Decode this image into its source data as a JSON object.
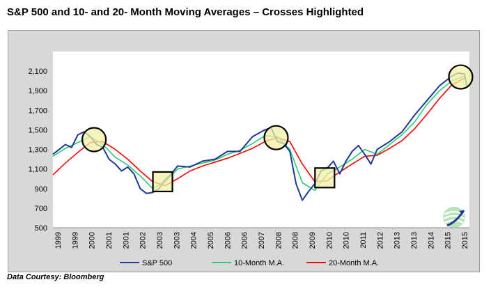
{
  "title": "S&P 500 and 10- and 20- Month Moving Averages – Crosses Highlighted",
  "credit": "Data Courtesy: Bloomberg",
  "colors": {
    "sp500": "#1f3a93",
    "ma10": "#2ecc71",
    "ma20": "#ff0000",
    "marker_fill": "#f2f0a6",
    "panel": "#d8d8d8"
  },
  "chart_data": {
    "type": "line",
    "title": "S&P 500 and 10- and 20- Month Moving Averages – Crosses Highlighted",
    "xlabel": "",
    "ylabel": "",
    "xlim": [
      1999.0,
      2015.7
    ],
    "ylim": [
      500,
      2300
    ],
    "y_ticks": [
      500,
      700,
      900,
      1100,
      1300,
      1500,
      1700,
      1900,
      2100
    ],
    "y_tick_labels": [
      "500",
      "700",
      "900",
      "1,100",
      "1,300",
      "1,500",
      "1,700",
      "1,900",
      "2,100"
    ],
    "x_tick_labels": [
      "1999",
      "1999",
      "2000",
      "2001",
      "2001",
      "2002",
      "2003",
      "2003",
      "2004",
      "2005",
      "2006",
      "2006",
      "2007",
      "2008",
      "2008",
      "2009",
      "2010",
      "2010",
      "2011",
      "2012",
      "2013",
      "2013",
      "2014",
      "2015",
      "2015"
    ],
    "legend_position": "bottom",
    "grid": false,
    "series": [
      {
        "name": "S&P 500",
        "color": "#1f3a93",
        "x": [
          1999.0,
          1999.25,
          1999.5,
          1999.75,
          2000.0,
          2000.25,
          2000.5,
          2000.75,
          2001.0,
          2001.25,
          2001.5,
          2001.75,
          2002.0,
          2002.25,
          2002.5,
          2002.75,
          2003.0,
          2003.25,
          2003.5,
          2003.75,
          2004.0,
          2004.5,
          2005.0,
          2005.5,
          2006.0,
          2006.5,
          2007.0,
          2007.5,
          2007.75,
          2008.0,
          2008.25,
          2008.5,
          2008.75,
          2009.0,
          2009.25,
          2009.5,
          2009.75,
          2010.0,
          2010.25,
          2010.5,
          2010.75,
          2011.0,
          2011.25,
          2011.5,
          2011.75,
          2012.0,
          2012.5,
          2013.0,
          2013.5,
          2014.0,
          2014.5,
          2015.0,
          2015.25,
          2015.5,
          2015.6
        ],
        "y": [
          1250,
          1300,
          1350,
          1320,
          1450,
          1480,
          1430,
          1350,
          1320,
          1200,
          1150,
          1080,
          1120,
          1050,
          900,
          850,
          860,
          900,
          990,
          1050,
          1130,
          1120,
          1180,
          1200,
          1280,
          1280,
          1430,
          1500,
          1520,
          1380,
          1360,
          1280,
          950,
          780,
          870,
          950,
          1080,
          1110,
          1180,
          1050,
          1180,
          1280,
          1340,
          1250,
          1150,
          1300,
          1380,
          1480,
          1650,
          1800,
          1950,
          2050,
          2080,
          2070,
          1950
        ]
      },
      {
        "name": "10-Month M.A.",
        "color": "#2ecc71",
        "x": [
          1999.0,
          1999.5,
          2000.0,
          2000.5,
          2001.0,
          2001.5,
          2002.0,
          2002.5,
          2003.0,
          2003.5,
          2004.0,
          2004.5,
          2005.0,
          2005.5,
          2006.0,
          2006.5,
          2007.0,
          2007.5,
          2008.0,
          2008.5,
          2009.0,
          2009.5,
          2010.0,
          2010.5,
          2011.0,
          2011.5,
          2012.0,
          2012.5,
          2013.0,
          2013.5,
          2014.0,
          2014.5,
          2015.0,
          2015.5
        ],
        "y": [
          1230,
          1310,
          1370,
          1430,
          1350,
          1220,
          1140,
          1030,
          900,
          970,
          1100,
          1130,
          1160,
          1190,
          1250,
          1290,
          1360,
          1440,
          1430,
          1300,
          960,
          880,
          1050,
          1120,
          1200,
          1300,
          1250,
          1350,
          1450,
          1580,
          1760,
          1900,
          2000,
          2050
        ]
      },
      {
        "name": "20-Month M.A.",
        "color": "#ff0000",
        "x": [
          1999.0,
          1999.5,
          2000.0,
          2000.5,
          2001.0,
          2001.5,
          2002.0,
          2002.5,
          2003.0,
          2003.5,
          2004.0,
          2004.5,
          2005.0,
          2005.5,
          2006.0,
          2006.5,
          2007.0,
          2007.5,
          2008.0,
          2008.5,
          2009.0,
          2009.5,
          2010.0,
          2010.5,
          2011.0,
          2011.5,
          2012.0,
          2012.5,
          2013.0,
          2013.5,
          2014.0,
          2014.5,
          2015.0,
          2015.5
        ],
        "y": [
          1040,
          1160,
          1270,
          1370,
          1380,
          1300,
          1200,
          1080,
          970,
          930,
          1000,
          1080,
          1130,
          1170,
          1210,
          1260,
          1310,
          1380,
          1420,
          1380,
          1150,
          970,
          980,
          1070,
          1150,
          1230,
          1240,
          1310,
          1390,
          1510,
          1660,
          1820,
          1960,
          2030
        ]
      }
    ],
    "highlights": [
      {
        "shape": "circle",
        "x": 2000.65,
        "y": 1400
      },
      {
        "shape": "square",
        "x": 2003.4,
        "y": 970
      },
      {
        "shape": "circle",
        "x": 2007.95,
        "y": 1420
      },
      {
        "shape": "square",
        "x": 2009.9,
        "y": 1010
      },
      {
        "shape": "circle",
        "x": 2015.35,
        "y": 2040
      }
    ]
  }
}
